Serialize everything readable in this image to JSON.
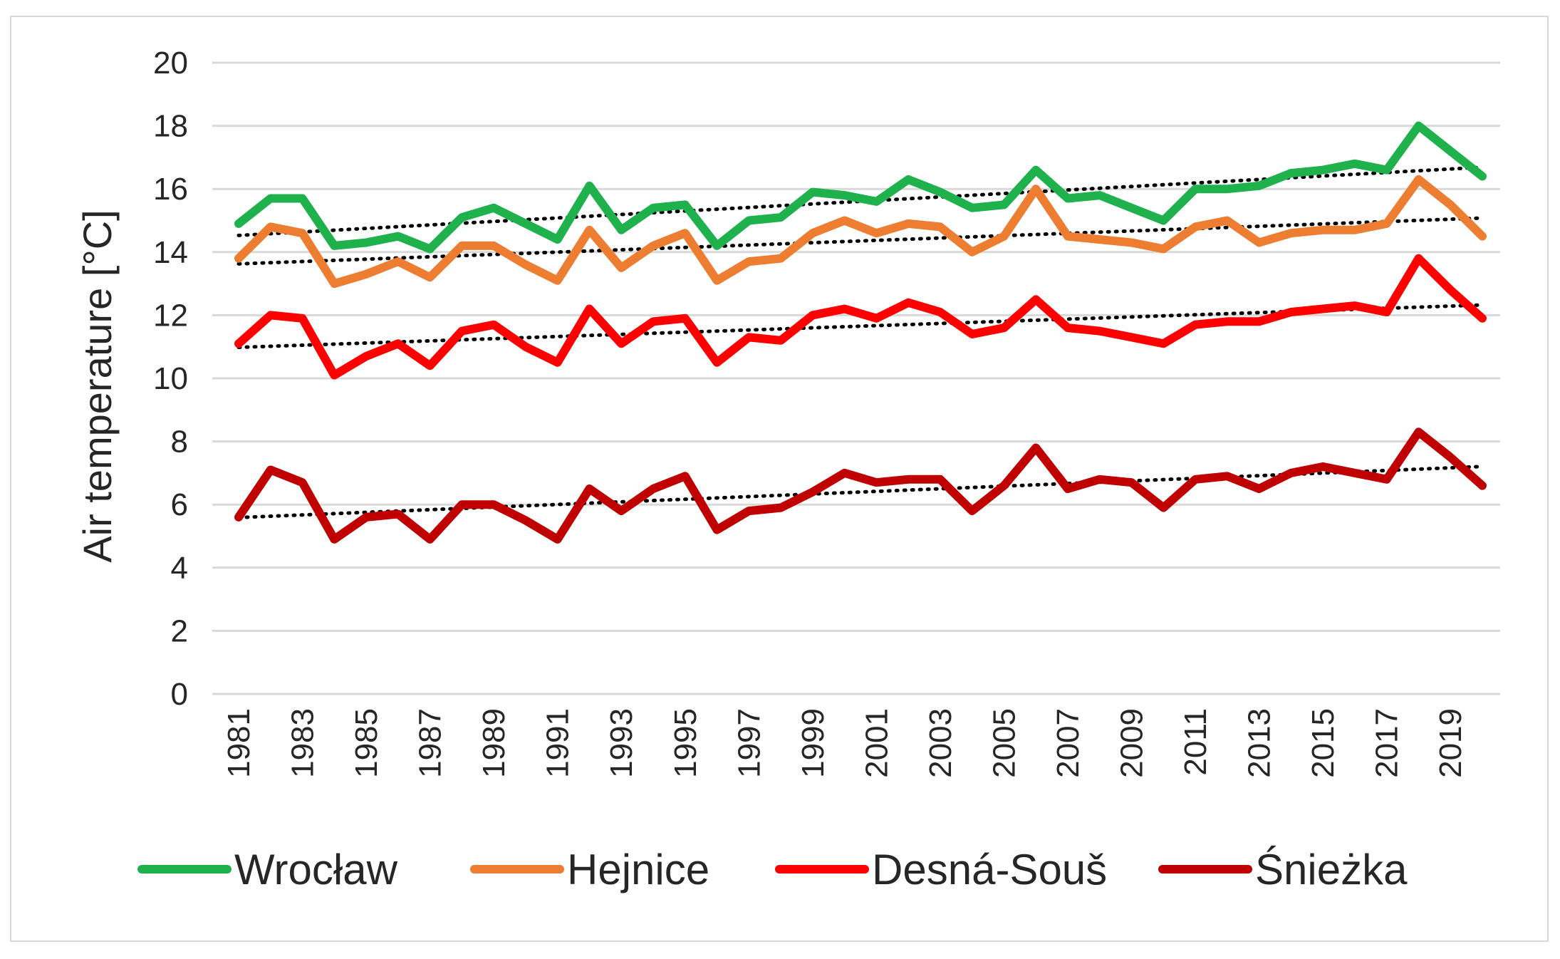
{
  "chart_data": {
    "type": "line",
    "title": "",
    "xlabel": "",
    "ylabel": "Air temperature [°C]",
    "ylim": [
      0,
      20
    ],
    "yticks": [
      0,
      2,
      4,
      6,
      8,
      10,
      12,
      14,
      16,
      18,
      20
    ],
    "x": [
      1981,
      1982,
      1983,
      1984,
      1985,
      1986,
      1987,
      1988,
      1989,
      1990,
      1991,
      1992,
      1993,
      1994,
      1995,
      1996,
      1997,
      1998,
      1999,
      2000,
      2001,
      2002,
      2003,
      2004,
      2005,
      2006,
      2007,
      2008,
      2009,
      2010,
      2011,
      2012,
      2013,
      2014,
      2015,
      2016,
      2017,
      2018,
      2019,
      2020
    ],
    "xtick_labels": [
      "1981",
      "1983",
      "1985",
      "1987",
      "1989",
      "1991",
      "1993",
      "1995",
      "1997",
      "1999",
      "2001",
      "2003",
      "2005",
      "2007",
      "2009",
      "2011",
      "2013",
      "2015",
      "2017",
      "2019"
    ],
    "grid": true,
    "legend_position": "bottom",
    "trendlines": "linear, dotted, one per series",
    "series": [
      {
        "name": "Wrocław",
        "color": "#1fb14b",
        "values": [
          14.9,
          15.7,
          15.7,
          14.2,
          14.3,
          14.5,
          14.1,
          15.1,
          15.4,
          14.9,
          14.4,
          16.1,
          14.7,
          15.4,
          15.5,
          14.2,
          15.0,
          15.1,
          15.9,
          15.8,
          15.6,
          16.3,
          15.9,
          15.4,
          15.5,
          16.6,
          15.7,
          15.8,
          15.4,
          15.0,
          16.0,
          16.0,
          16.1,
          16.5,
          16.6,
          16.8,
          16.6,
          18.0,
          17.2,
          16.4
        ]
      },
      {
        "name": "Hejnice",
        "color": "#ed7d31",
        "values": [
          13.8,
          14.8,
          14.6,
          13.0,
          13.3,
          13.7,
          13.2,
          14.2,
          14.2,
          13.6,
          13.1,
          14.7,
          13.5,
          14.2,
          14.6,
          13.1,
          13.7,
          13.8,
          14.6,
          15.0,
          14.6,
          14.9,
          14.8,
          14.0,
          14.5,
          16.0,
          14.5,
          14.4,
          14.3,
          14.1,
          14.8,
          15.0,
          14.3,
          14.6,
          14.7,
          14.7,
          14.9,
          16.3,
          15.5,
          14.5
        ]
      },
      {
        "name": "Desná-Souš",
        "color": "#ff0000",
        "values": [
          11.1,
          12.0,
          11.9,
          10.1,
          10.7,
          11.1,
          10.4,
          11.5,
          11.7,
          11.0,
          10.5,
          12.2,
          11.1,
          11.8,
          11.9,
          10.5,
          11.3,
          11.2,
          12.0,
          12.2,
          11.9,
          12.4,
          12.1,
          11.4,
          11.6,
          12.5,
          11.6,
          11.5,
          11.3,
          11.1,
          11.7,
          11.8,
          11.8,
          12.1,
          12.2,
          12.3,
          12.1,
          13.8,
          12.8,
          11.9
        ]
      },
      {
        "name": "Śnieżka",
        "color": "#c00000",
        "values": [
          5.6,
          7.1,
          6.7,
          4.9,
          5.6,
          5.7,
          4.9,
          6.0,
          6.0,
          5.5,
          4.9,
          6.5,
          5.8,
          6.5,
          6.9,
          5.2,
          5.8,
          5.9,
          6.4,
          7.0,
          6.7,
          6.8,
          6.8,
          5.8,
          6.6,
          7.8,
          6.5,
          6.8,
          6.7,
          5.9,
          6.8,
          6.9,
          6.5,
          7.0,
          7.2,
          7.0,
          6.8,
          8.3,
          7.5,
          6.6
        ]
      }
    ]
  }
}
